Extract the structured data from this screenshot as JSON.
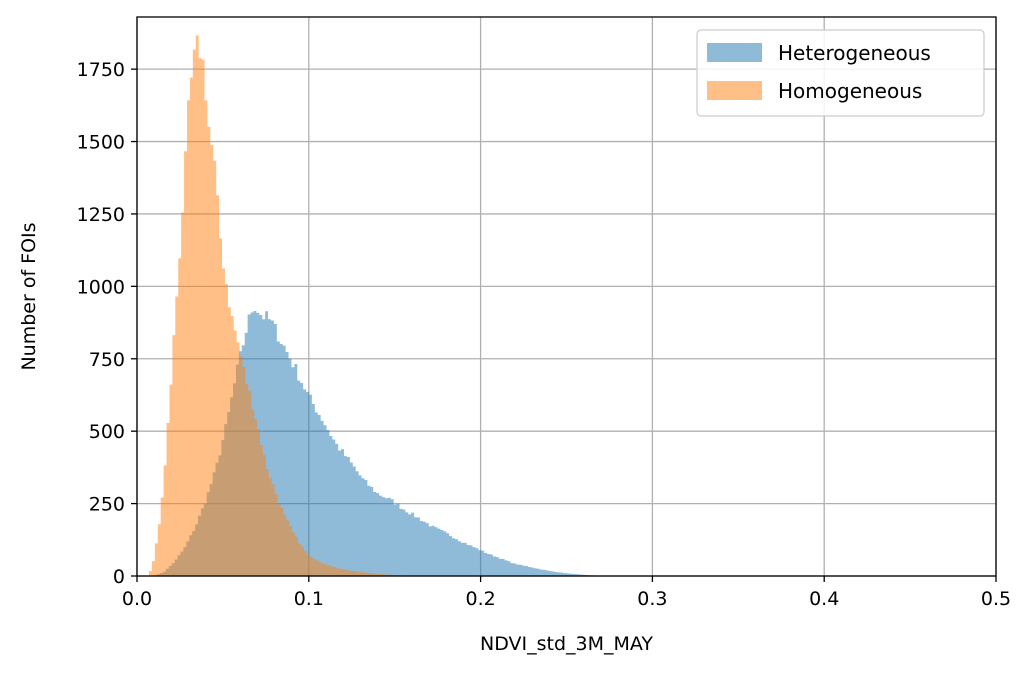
{
  "chart_data": {
    "type": "histogram",
    "title": "",
    "xlabel": "NDVI_std_3M_MAY",
    "ylabel": "Number of FOIs",
    "xlim": [
      0.0,
      0.5
    ],
    "ylim": [
      0,
      1930
    ],
    "xticks": [
      "0.0",
      "0.1",
      "0.2",
      "0.3",
      "0.4",
      "0.5"
    ],
    "yticks": [
      "0",
      "250",
      "500",
      "750",
      "1000",
      "1250",
      "1500",
      "1750"
    ],
    "grid": true,
    "legend_position": "top-right",
    "series": [
      {
        "name": "Heterogeneous",
        "color": "#1f77b4",
        "opacity": 0.5,
        "bin_width": 0.0017,
        "peak": {
          "x": 0.066,
          "y": 950
        },
        "points": [
          [
            0.01,
            0
          ],
          [
            0.016,
            15
          ],
          [
            0.022,
            50
          ],
          [
            0.028,
            100
          ],
          [
            0.034,
            170
          ],
          [
            0.04,
            260
          ],
          [
            0.046,
            370
          ],
          [
            0.052,
            520
          ],
          [
            0.058,
            700
          ],
          [
            0.064,
            860
          ],
          [
            0.068,
            940
          ],
          [
            0.072,
            905
          ],
          [
            0.078,
            880
          ],
          [
            0.085,
            800
          ],
          [
            0.092,
            720
          ],
          [
            0.1,
            620
          ],
          [
            0.108,
            540
          ],
          [
            0.116,
            455
          ],
          [
            0.124,
            395
          ],
          [
            0.132,
            330
          ],
          [
            0.14,
            285
          ],
          [
            0.148,
            262
          ],
          [
            0.156,
            228
          ],
          [
            0.164,
            200
          ],
          [
            0.172,
            170
          ],
          [
            0.18,
            148
          ],
          [
            0.188,
            122
          ],
          [
            0.196,
            100
          ],
          [
            0.204,
            78
          ],
          [
            0.212,
            60
          ],
          [
            0.22,
            42
          ],
          [
            0.228,
            32
          ],
          [
            0.236,
            22
          ],
          [
            0.244,
            14
          ],
          [
            0.252,
            8
          ],
          [
            0.26,
            4
          ],
          [
            0.266,
            2
          ],
          [
            0.272,
            0
          ]
        ]
      },
      {
        "name": "Homogeneous",
        "color": "#ff7f0e",
        "opacity": 0.5,
        "bin_width": 0.0017,
        "peak": {
          "x": 0.036,
          "y": 1840
        },
        "points": [
          [
            0.007,
            0
          ],
          [
            0.01,
            60
          ],
          [
            0.013,
            180
          ],
          [
            0.016,
            350
          ],
          [
            0.019,
            600
          ],
          [
            0.022,
            870
          ],
          [
            0.025,
            1130
          ],
          [
            0.028,
            1400
          ],
          [
            0.03,
            1600
          ],
          [
            0.032,
            1730
          ],
          [
            0.034,
            1800
          ],
          [
            0.036,
            1840
          ],
          [
            0.038,
            1790
          ],
          [
            0.04,
            1690
          ],
          [
            0.042,
            1540
          ],
          [
            0.045,
            1430
          ],
          [
            0.048,
            1200
          ],
          [
            0.051,
            1050
          ],
          [
            0.055,
            900
          ],
          [
            0.059,
            800
          ],
          [
            0.063,
            690
          ],
          [
            0.067,
            600
          ],
          [
            0.071,
            500
          ],
          [
            0.075,
            390
          ],
          [
            0.08,
            300
          ],
          [
            0.085,
            220
          ],
          [
            0.09,
            160
          ],
          [
            0.095,
            110
          ],
          [
            0.1,
            70
          ],
          [
            0.108,
            45
          ],
          [
            0.115,
            30
          ],
          [
            0.125,
            18
          ],
          [
            0.135,
            10
          ],
          [
            0.145,
            5
          ],
          [
            0.155,
            2
          ],
          [
            0.165,
            0
          ]
        ]
      }
    ]
  }
}
